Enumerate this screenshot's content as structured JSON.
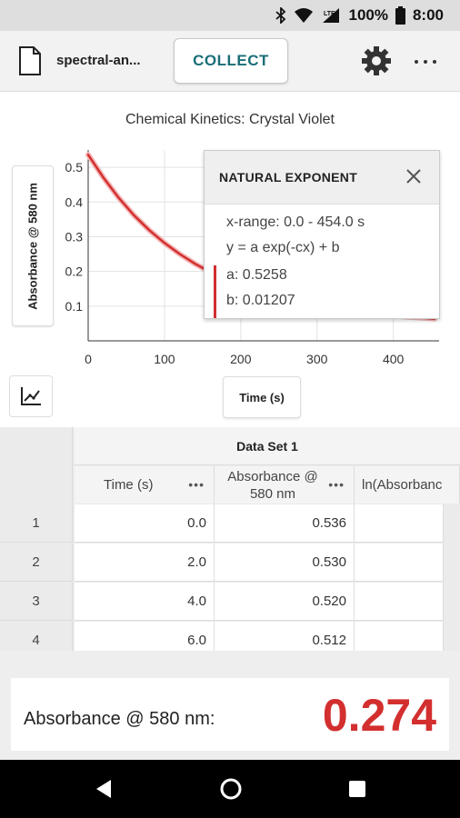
{
  "status_bar": {
    "network": "LTE",
    "battery": "100%",
    "time": "8:00"
  },
  "toolbar": {
    "filename": "spectral-an...",
    "collect_label": "COLLECT"
  },
  "chart_data": {
    "type": "line",
    "title": "Chemical Kinetics: Crystal Violet",
    "xlabel": "Time (s)",
    "ylabel": "Absorbance @ 580 nm",
    "xlim": [
      0,
      460
    ],
    "ylim": [
      0,
      0.55
    ],
    "x_ticks": [
      "0",
      "100",
      "200",
      "300",
      "400"
    ],
    "y_ticks": [
      "0.1",
      "0.2",
      "0.3",
      "0.4",
      "0.5"
    ],
    "grid": true,
    "series": [
      {
        "x": [
          0,
          20,
          40,
          60,
          80,
          100,
          120,
          140,
          160,
          180,
          200,
          220,
          240,
          260,
          280,
          300,
          320,
          340,
          360,
          380,
          400,
          420,
          440,
          454
        ],
        "y": [
          0.536,
          0.47,
          0.412,
          0.362,
          0.319,
          0.282,
          0.25,
          0.222,
          0.198,
          0.178,
          0.16,
          0.145,
          0.131,
          0.12,
          0.11,
          0.101,
          0.094,
          0.087,
          0.082,
          0.077,
          0.072,
          0.069,
          0.066,
          0.064
        ],
        "color": "#d32f2f"
      }
    ]
  },
  "curve_fit": {
    "title": "NATURAL EXPONENT",
    "x_range": "x-range: 0.0 - 454.0 s",
    "equation": "y = a exp(-cx) + b",
    "a": "a: 0.5258",
    "b": "b: 0.01207"
  },
  "table": {
    "dataset_title": "Data Set 1",
    "columns": [
      {
        "label": "Time (s)"
      },
      {
        "label": "Absorbance @ 580 nm"
      },
      {
        "label": "ln(Absorbanc"
      }
    ],
    "rows": [
      {
        "index": "1",
        "time": "0.0",
        "absorbance": "0.536"
      },
      {
        "index": "2",
        "time": "2.0",
        "absorbance": "0.530"
      },
      {
        "index": "3",
        "time": "4.0",
        "absorbance": "0.520"
      },
      {
        "index": "4",
        "time": "6.0",
        "absorbance": "0.512"
      }
    ]
  },
  "meter": {
    "label": "Absorbance @ 580 nm:",
    "value": "0.274"
  }
}
